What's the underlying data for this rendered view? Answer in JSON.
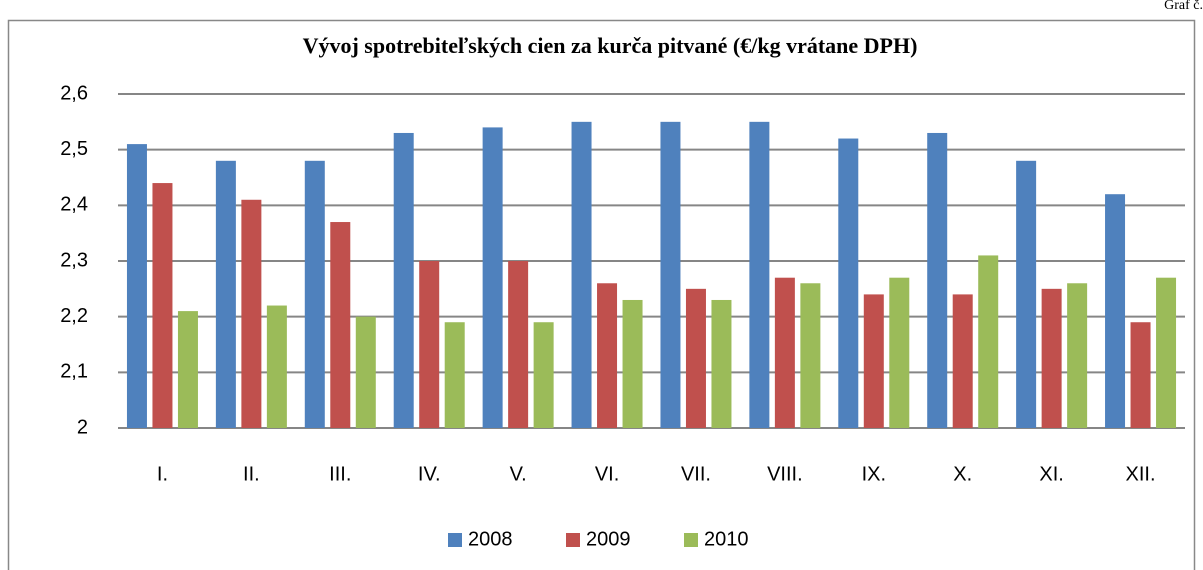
{
  "corner_label": "Graf č.",
  "chart_data": {
    "type": "bar",
    "title": "Vývoj spotrebiteľských  cien za kurča pitvané (€/kg vrátane DPH)",
    "categories": [
      "I.",
      "II.",
      "III.",
      "IV.",
      "V.",
      "VI.",
      "VII.",
      "VIII.",
      "IX.",
      "X.",
      "XI.",
      "XII."
    ],
    "series": [
      {
        "name": "2008",
        "color": "#4f81bd",
        "values": [
          2.51,
          2.48,
          2.48,
          2.53,
          2.54,
          2.55,
          2.55,
          2.55,
          2.52,
          2.53,
          2.48,
          2.42
        ]
      },
      {
        "name": "2009",
        "color": "#c0504d",
        "values": [
          2.44,
          2.41,
          2.37,
          2.3,
          2.3,
          2.26,
          2.25,
          2.27,
          2.24,
          2.24,
          2.25,
          2.19
        ]
      },
      {
        "name": "2010",
        "color": "#9bbb59",
        "values": [
          2.21,
          2.22,
          2.2,
          2.19,
          2.19,
          2.23,
          2.23,
          2.26,
          2.27,
          2.31,
          2.26,
          2.27
        ]
      }
    ],
    "ylim": [
      2,
      2.6
    ],
    "yticks": [
      2,
      {
        "value": 2.1,
        "label": "2,1"
      },
      {
        "value": 2.2,
        "label": "2,2"
      },
      {
        "value": 2.3,
        "label": "2,3"
      },
      {
        "value": 2.4,
        "label": "2,4"
      },
      {
        "value": 2.5,
        "label": "2,5"
      },
      {
        "value": 2.6,
        "label": "2,6"
      }
    ],
    "grid": true,
    "legend": "bottom"
  }
}
